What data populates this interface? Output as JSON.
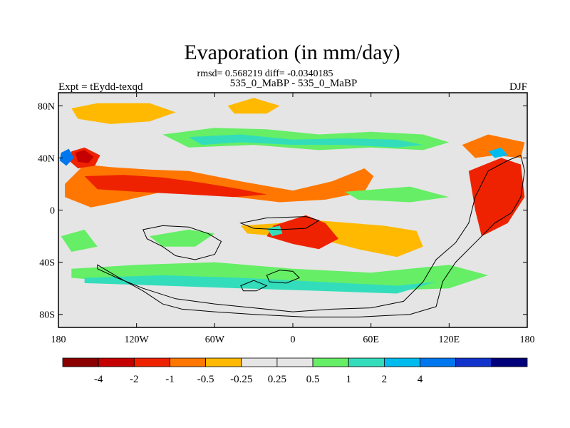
{
  "chart_data": {
    "type": "heatmap",
    "title": "Evaporation (in mm/day)",
    "stats_line": "rmsd= 0.568219 diff= -0.0340185",
    "subtitle": "535_0_MaBP - 535_0_MaBP",
    "left_label": "Expt = tEydd-texqd",
    "right_label": "DJF",
    "x_ticks": [
      {
        "lon": -180,
        "label": "180"
      },
      {
        "lon": -120,
        "label": "120W"
      },
      {
        "lon": -60,
        "label": "60W"
      },
      {
        "lon": 0,
        "label": "0"
      },
      {
        "lon": 60,
        "label": "60E"
      },
      {
        "lon": 120,
        "label": "120E"
      },
      {
        "lon": 180,
        "label": "180"
      }
    ],
    "y_ticks": [
      {
        "lat": 80,
        "label": "80N"
      },
      {
        "lat": 40,
        "label": "40N"
      },
      {
        "lat": 0,
        "label": "0"
      },
      {
        "lat": -40,
        "label": "40S"
      },
      {
        "lat": -80,
        "label": "80S"
      }
    ],
    "xlim": [
      -180,
      180
    ],
    "ylim": [
      -90,
      90
    ],
    "colorbar": {
      "colors": [
        "#8b0000",
        "#c40000",
        "#ee2200",
        "#ff7700",
        "#ffb900",
        "#e5e5e5",
        "#e5e5e5",
        "#66ee66",
        "#33ddbb",
        "#00bbee",
        "#0077ee",
        "#1133cc",
        "#00007a"
      ],
      "labels": [
        "-4",
        "-2",
        "-1",
        "-0.5",
        "-0.25",
        "0.25",
        "0.5",
        "1",
        "2",
        "4"
      ]
    },
    "features": [
      {
        "name": "tropical-orange-band",
        "color": "#ff7700",
        "points": [
          [
            -175,
            20
          ],
          [
            -160,
            35
          ],
          [
            -140,
            33
          ],
          [
            -110,
            31
          ],
          [
            -80,
            30
          ],
          [
            -40,
            22
          ],
          [
            0,
            15
          ],
          [
            30,
            22
          ],
          [
            55,
            32
          ],
          [
            62,
            26
          ],
          [
            55,
            14
          ],
          [
            25,
            8
          ],
          [
            -10,
            6
          ],
          [
            -60,
            12
          ],
          [
            -100,
            14
          ],
          [
            -135,
            6
          ],
          [
            -155,
            2
          ],
          [
            -175,
            10
          ]
        ]
      },
      {
        "name": "tropical-red-core",
        "color": "#ee2200",
        "points": [
          [
            -160,
            26
          ],
          [
            -130,
            27
          ],
          [
            -100,
            25
          ],
          [
            -70,
            21
          ],
          [
            -40,
            16
          ],
          [
            -20,
            12
          ],
          [
            -45,
            10
          ],
          [
            -80,
            12
          ],
          [
            -120,
            14
          ],
          [
            -150,
            16
          ]
        ]
      },
      {
        "name": "nw-red-spot",
        "color": "#ee2200",
        "points": [
          [
            -170,
            45
          ],
          [
            -160,
            48
          ],
          [
            -148,
            42
          ],
          [
            -152,
            34
          ],
          [
            -165,
            32
          ],
          [
            -172,
            38
          ]
        ]
      },
      {
        "name": "nw-darkred-spot",
        "color": "#c40000",
        "points": [
          [
            -167,
            44
          ],
          [
            -160,
            46
          ],
          [
            -153,
            41
          ],
          [
            -157,
            36
          ],
          [
            -165,
            37
          ]
        ]
      },
      {
        "name": "nw-blue-spot",
        "color": "#0077ee",
        "points": [
          [
            -178,
            44
          ],
          [
            -172,
            47
          ],
          [
            -168,
            40
          ],
          [
            -174,
            34
          ],
          [
            -179,
            38
          ]
        ]
      },
      {
        "name": "south-yellow-band",
        "color": "#ffb900",
        "points": [
          [
            -40,
            -12
          ],
          [
            -10,
            -10
          ],
          [
            20,
            -8
          ],
          [
            45,
            -10
          ],
          [
            70,
            -12
          ],
          [
            95,
            -16
          ],
          [
            100,
            -28
          ],
          [
            80,
            -36
          ],
          [
            50,
            -30
          ],
          [
            20,
            -22
          ],
          [
            -10,
            -20
          ],
          [
            -35,
            -18
          ]
        ]
      },
      {
        "name": "south-red-blob",
        "color": "#ee2200",
        "points": [
          [
            -15,
            -12
          ],
          [
            10,
            -4
          ],
          [
            25,
            -10
          ],
          [
            35,
            -22
          ],
          [
            20,
            -30
          ],
          [
            0,
            -26
          ],
          [
            -20,
            -20
          ]
        ]
      },
      {
        "name": "arctic-yellow-patch",
        "color": "#ffb900",
        "points": [
          [
            -170,
            78
          ],
          [
            -150,
            82
          ],
          [
            -110,
            82
          ],
          [
            -90,
            75
          ],
          [
            -110,
            68
          ],
          [
            -140,
            66
          ],
          [
            -165,
            70
          ]
        ]
      },
      {
        "name": "arctic-yellow-patch-2",
        "color": "#ffb900",
        "points": [
          [
            -50,
            80
          ],
          [
            -30,
            86
          ],
          [
            -10,
            80
          ],
          [
            -20,
            74
          ],
          [
            -45,
            74
          ]
        ]
      },
      {
        "name": "north-green-band",
        "color": "#66ee66",
        "points": [
          [
            -100,
            58
          ],
          [
            -60,
            63
          ],
          [
            -20,
            62
          ],
          [
            20,
            58
          ],
          [
            60,
            60
          ],
          [
            100,
            58
          ],
          [
            120,
            52
          ],
          [
            100,
            46
          ],
          [
            60,
            48
          ],
          [
            20,
            46
          ],
          [
            -30,
            50
          ],
          [
            -80,
            48
          ]
        ]
      },
      {
        "name": "north-teal-band",
        "color": "#33ddbb",
        "points": [
          [
            -80,
            56
          ],
          [
            -40,
            58
          ],
          [
            0,
            54
          ],
          [
            40,
            55
          ],
          [
            80,
            54
          ],
          [
            100,
            50
          ],
          [
            80,
            48
          ],
          [
            40,
            50
          ],
          [
            0,
            50
          ],
          [
            -40,
            52
          ],
          [
            -70,
            50
          ]
        ]
      },
      {
        "name": "east-red-patch",
        "color": "#ee2200",
        "points": [
          [
            135,
            30
          ],
          [
            160,
            40
          ],
          [
            175,
            35
          ],
          [
            178,
            10
          ],
          [
            165,
            -10
          ],
          [
            145,
            -20
          ],
          [
            140,
            0
          ]
        ]
      },
      {
        "name": "east-orange-patch",
        "color": "#ff7700",
        "points": [
          [
            130,
            50
          ],
          [
            150,
            58
          ],
          [
            178,
            52
          ],
          [
            175,
            40
          ],
          [
            155,
            42
          ],
          [
            140,
            40
          ]
        ]
      },
      {
        "name": "east-blue-spot",
        "color": "#00bbee",
        "points": [
          [
            150,
            45
          ],
          [
            160,
            48
          ],
          [
            165,
            42
          ],
          [
            155,
            40
          ]
        ]
      },
      {
        "name": "south-green-band",
        "color": "#66ee66",
        "points": [
          [
            -170,
            -45
          ],
          [
            -120,
            -42
          ],
          [
            -60,
            -40
          ],
          [
            0,
            -45
          ],
          [
            60,
            -48
          ],
          [
            120,
            -42
          ],
          [
            150,
            -50
          ],
          [
            120,
            -60
          ],
          [
            60,
            -62
          ],
          [
            0,
            -60
          ],
          [
            -60,
            -58
          ],
          [
            -120,
            -56
          ],
          [
            -170,
            -52
          ]
        ]
      },
      {
        "name": "south-teal-band",
        "color": "#33ddbb",
        "points": [
          [
            -160,
            -52
          ],
          [
            -100,
            -50
          ],
          [
            -40,
            -52
          ],
          [
            20,
            -55
          ],
          [
            80,
            -58
          ],
          [
            110,
            -55
          ],
          [
            80,
            -64
          ],
          [
            20,
            -62
          ],
          [
            -40,
            -60
          ],
          [
            -100,
            -58
          ],
          [
            -160,
            -56
          ]
        ]
      },
      {
        "name": "south-green-patch-2",
        "color": "#66ee66",
        "points": [
          [
            -110,
            -20
          ],
          [
            -80,
            -15
          ],
          [
            -60,
            -18
          ],
          [
            -75,
            -28
          ],
          [
            -100,
            -28
          ]
        ]
      },
      {
        "name": "east-green-patch",
        "color": "#66ee66",
        "points": [
          [
            -178,
            -20
          ],
          [
            -160,
            -15
          ],
          [
            -150,
            -28
          ],
          [
            -170,
            -32
          ]
        ]
      },
      {
        "name": "pacific-green-strip",
        "color": "#66ee66",
        "points": [
          [
            40,
            14
          ],
          [
            90,
            18
          ],
          [
            120,
            10
          ],
          [
            90,
            6
          ],
          [
            50,
            8
          ]
        ]
      },
      {
        "name": "equatorial-teal-spot",
        "color": "#33ddbb",
        "points": [
          [
            -20,
            -14
          ],
          [
            -10,
            -12
          ],
          [
            -8,
            -18
          ],
          [
            -16,
            -20
          ]
        ]
      }
    ],
    "coastlines": [
      {
        "name": "continent-outline-west",
        "points": [
          [
            -150,
            -42
          ],
          [
            -140,
            -48
          ],
          [
            -128,
            -55
          ],
          [
            -115,
            -62
          ],
          [
            -100,
            -72
          ],
          [
            -85,
            -76
          ],
          [
            -60,
            -78
          ],
          [
            -30,
            -80
          ],
          [
            10,
            -82
          ],
          [
            50,
            -82
          ],
          [
            90,
            -80
          ],
          [
            110,
            -74
          ],
          [
            115,
            -55
          ],
          [
            125,
            -40
          ],
          [
            140,
            -25
          ],
          [
            155,
            -10
          ],
          [
            168,
            -2
          ],
          [
            175,
            10
          ],
          [
            178,
            30
          ],
          [
            175,
            42
          ],
          [
            165,
            38
          ],
          [
            150,
            30
          ],
          [
            140,
            10
          ],
          [
            135,
            -10
          ],
          [
            125,
            -25
          ],
          [
            110,
            -38
          ],
          [
            100,
            -55
          ],
          [
            85,
            -70
          ],
          [
            60,
            -75
          ],
          [
            30,
            -76
          ],
          [
            0,
            -78
          ],
          [
            -30,
            -75
          ],
          [
            -60,
            -72
          ],
          [
            -90,
            -68
          ],
          [
            -115,
            -60
          ],
          [
            -135,
            -52
          ],
          [
            -150,
            -45
          ]
        ]
      },
      {
        "name": "continent-inner-west",
        "points": [
          [
            -115,
            -15
          ],
          [
            -100,
            -12
          ],
          [
            -80,
            -13
          ],
          [
            -65,
            -18
          ],
          [
            -55,
            -24
          ],
          [
            -60,
            -34
          ],
          [
            -75,
            -38
          ],
          [
            -90,
            -35
          ],
          [
            -100,
            -28
          ],
          [
            -112,
            -22
          ]
        ]
      },
      {
        "name": "continent-inner-east",
        "points": [
          [
            -40,
            -10
          ],
          [
            -20,
            -6
          ],
          [
            10,
            -5
          ],
          [
            20,
            -8
          ],
          [
            10,
            -14
          ],
          [
            -10,
            -15
          ],
          [
            -30,
            -14
          ]
        ]
      },
      {
        "name": "south-island-1",
        "points": [
          [
            -20,
            -50
          ],
          [
            -10,
            -46
          ],
          [
            0,
            -47
          ],
          [
            5,
            -52
          ],
          [
            -5,
            -56
          ],
          [
            -18,
            -55
          ]
        ]
      },
      {
        "name": "south-island-2",
        "points": [
          [
            -40,
            -58
          ],
          [
            -30,
            -54
          ],
          [
            -20,
            -58
          ],
          [
            -28,
            -62
          ],
          [
            -38,
            -62
          ]
        ]
      }
    ]
  }
}
